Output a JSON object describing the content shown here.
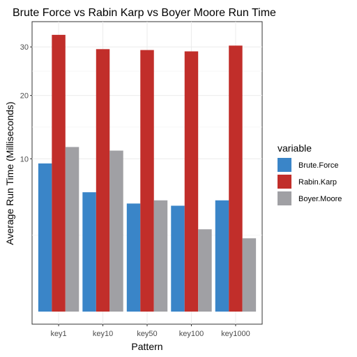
{
  "chart_data": {
    "type": "bar",
    "title": "Brute Force vs Rabin Karp vs Boyer Moore Run Time",
    "xlabel": "Pattern",
    "ylabel": "Average Run Time (Milliseconds)",
    "y_scale": "sqrt",
    "ylim": [
      0,
      36
    ],
    "yticks": [
      10,
      20,
      30
    ],
    "grid": true,
    "legend": {
      "title": "variable",
      "position": "right"
    },
    "categories": [
      "key1",
      "key10",
      "key50",
      "key100",
      "key1000"
    ],
    "series": [
      {
        "name": "Brute.Force",
        "color": "#3a85c8",
        "values": [
          9.4,
          6.1,
          5.0,
          4.8,
          5.3
        ]
      },
      {
        "name": "Rabin.Karp",
        "color": "#c12e2a",
        "values": [
          32.8,
          29.5,
          29.3,
          29.0,
          30.3
        ]
      },
      {
        "name": "Boyer.Moore",
        "color": "#a0a0a4",
        "values": [
          11.6,
          11.1,
          5.3,
          2.9,
          2.3
        ]
      }
    ]
  }
}
